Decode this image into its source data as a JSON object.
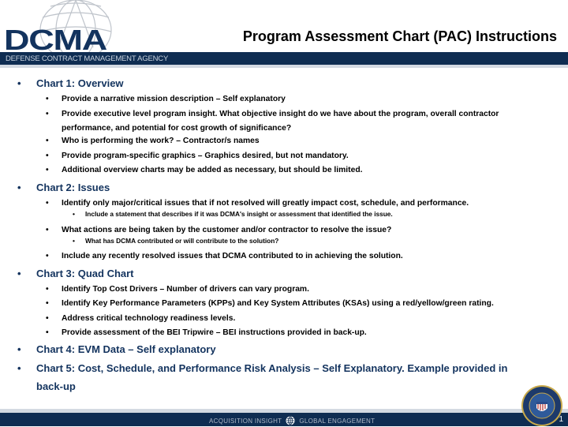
{
  "header": {
    "logo_text": "DCMA",
    "agency": "DEFENSE CONTRACT MANAGEMENT AGENCY",
    "title": "Program Assessment Chart (PAC) Instructions"
  },
  "bullets": [
    {
      "level": 1,
      "text": "Chart 1: Overview"
    },
    {
      "level": 2,
      "text": "Provide a narrative mission description – Self explanatory"
    },
    {
      "level": 2,
      "text": "Provide executive level program insight.  What objective insight do we have about the program, overall contractor",
      "cont": "performance, and potential for cost growth of significance?"
    },
    {
      "level": 2,
      "text": "Who is performing the work? – Contractor/s names"
    },
    {
      "level": 2,
      "text": "Provide program-specific graphics – Graphics desired, but not mandatory."
    },
    {
      "level": 2,
      "text": "Additional overview charts may be added as necessary, but should be limited."
    },
    {
      "level": 1,
      "text": "Chart 2: Issues"
    },
    {
      "level": 2,
      "text": "Identify only major/critical issues that if not resolved will greatly impact cost, schedule, and performance."
    },
    {
      "level": 3,
      "text": "Include a statement that describes if it was DCMA's insight or assessment that identified the issue."
    },
    {
      "level": 2,
      "text": "What actions are being taken by the customer and/or contractor to resolve the issue?"
    },
    {
      "level": 3,
      "text": "What has DCMA contributed or will contribute to the solution?"
    },
    {
      "level": 2,
      "text": "Include any recently resolved issues that DCMA contributed to in achieving the solution."
    },
    {
      "level": 1,
      "text": "Chart 3: Quad Chart"
    },
    {
      "level": 2,
      "text": "Identify Top Cost Drivers – Number of drivers can vary program."
    },
    {
      "level": 2,
      "text": "Identify Key Performance Parameters (KPPs) and Key System Attributes (KSAs) using a red/yellow/green rating."
    },
    {
      "level": 2,
      "text": "Address critical technology readiness levels."
    },
    {
      "level": 2,
      "text": "Provide assessment of the BEI Tripwire – BEI instructions provided in back-up."
    },
    {
      "level": 1,
      "text": "Chart 4: EVM Data – Self explanatory"
    },
    {
      "level": 1,
      "text": "Chart 5: Cost, Schedule, and Performance Risk Analysis – Self Explanatory.  Example provided in",
      "cont": "back-up"
    }
  ],
  "footer": {
    "left": "ACQUISITION INSIGHT",
    "right": "GLOBAL ENGAGEMENT",
    "page": "1",
    "icon": "globe-icon"
  },
  "colors": {
    "navy": "#0f2d52",
    "heading": "#13335e"
  }
}
